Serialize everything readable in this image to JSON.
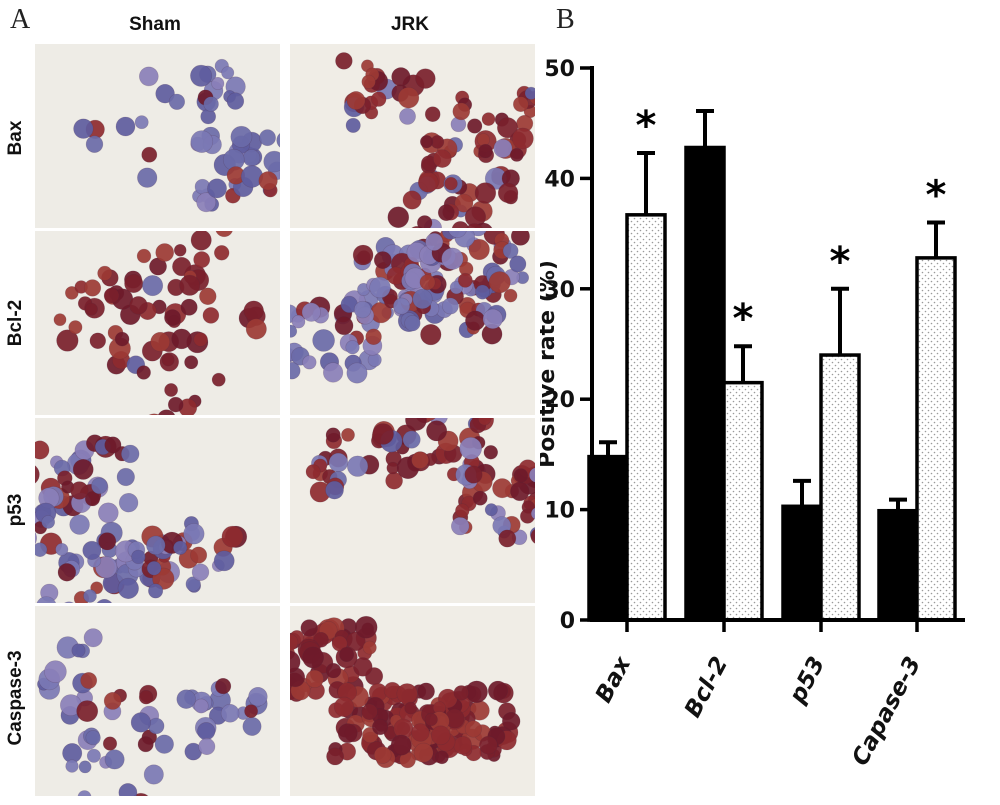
{
  "panel_a": {
    "letter": "A",
    "columns": [
      "Sham",
      "JRK"
    ],
    "rows": [
      "Bax",
      "Bcl-2",
      "p53",
      "Caspase-3"
    ]
  },
  "panel_b": {
    "letter": "B"
  },
  "chart_data": {
    "type": "bar",
    "categories": [
      "Bax",
      "Bcl-2",
      "p53",
      "Capase-3"
    ],
    "series": [
      {
        "values": [
          14.8,
          42.8,
          10.3,
          9.9
        ],
        "errors": [
          1.3,
          3.3,
          2.3,
          1.0
        ],
        "color": "#000000",
        "pattern": "solid"
      },
      {
        "values": [
          36.7,
          21.5,
          24.0,
          32.8
        ],
        "errors": [
          5.6,
          3.3,
          6.0,
          3.2
        ],
        "color": "#ffffff",
        "pattern": "dotted",
        "significance": [
          "*",
          "*",
          "*",
          "*"
        ]
      }
    ],
    "ylabel": "Positive rate (%)",
    "ylim": [
      0,
      50
    ],
    "yticks": [
      0,
      10,
      20,
      30,
      40,
      50
    ],
    "grid": false,
    "legend": "none"
  }
}
